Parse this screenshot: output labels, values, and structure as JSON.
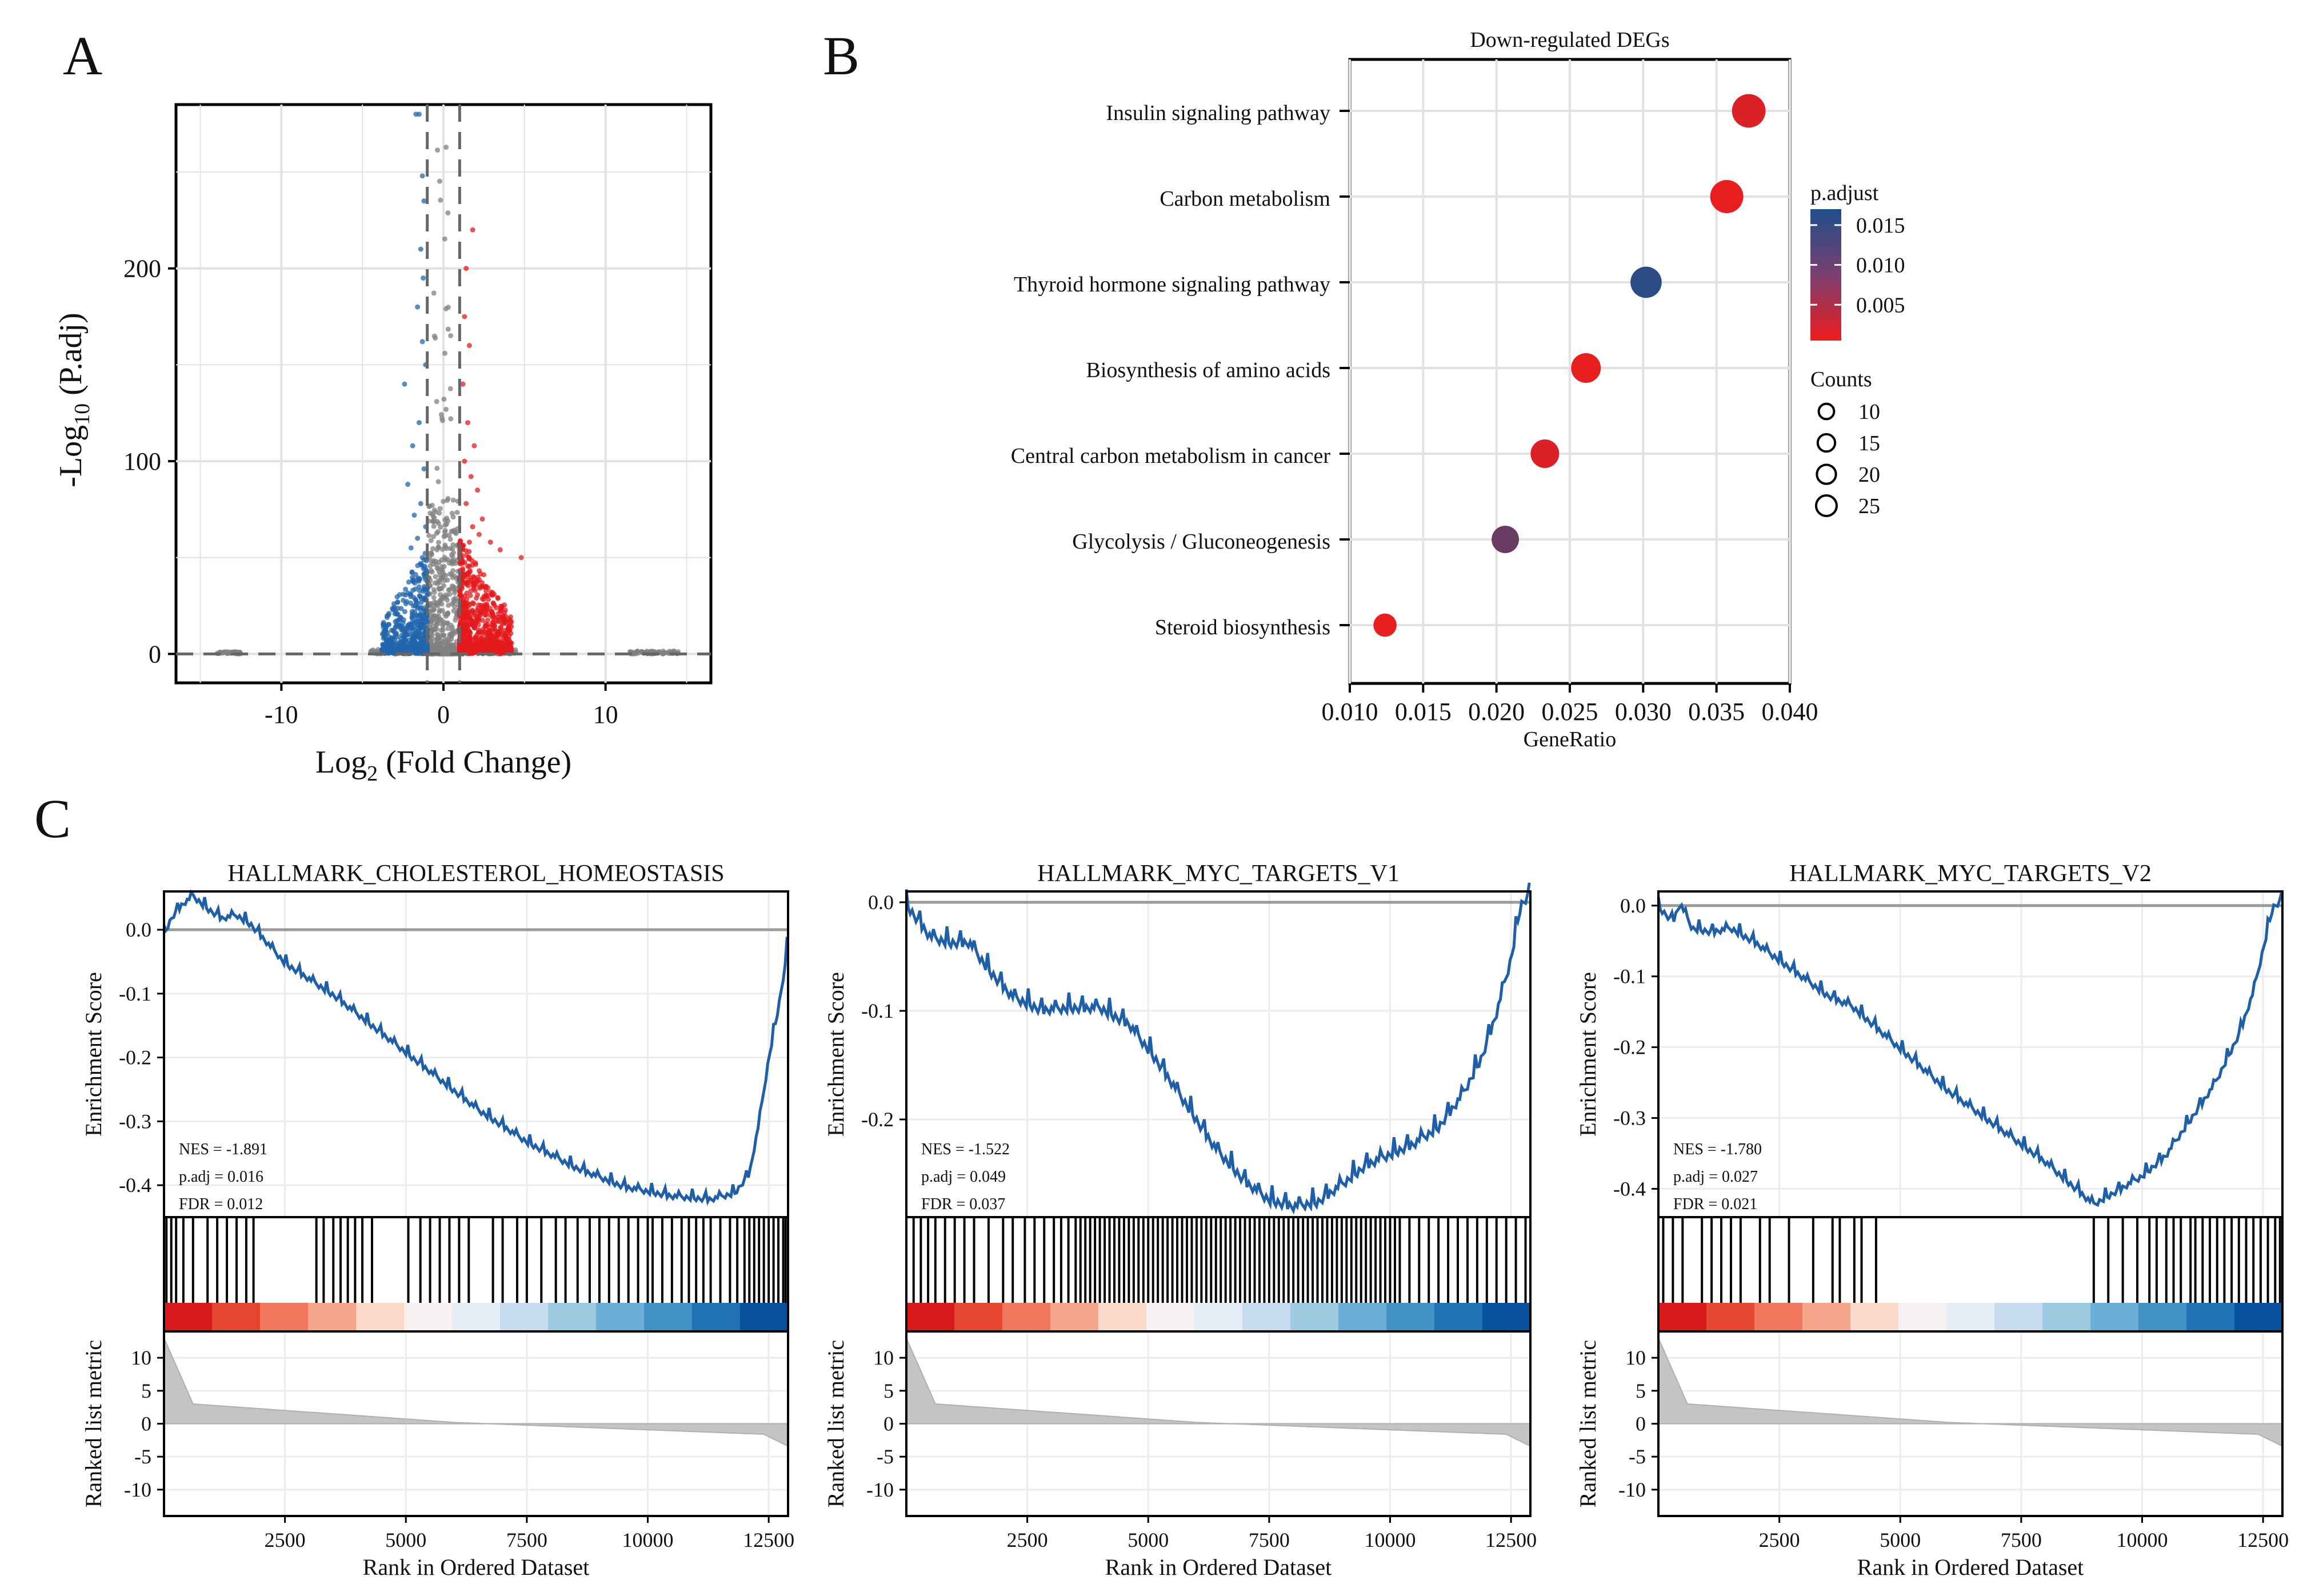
{
  "panels": {
    "a": "A",
    "b": "B",
    "c": "C"
  },
  "chart_data": [
    {
      "type": "scatter",
      "name": "volcano",
      "xlabel_main": "Log",
      "xlabel_sub": "2",
      "xlabel_rest": " (Fold Change)",
      "ylabel_main": "-Log",
      "ylabel_sub": "10",
      "ylabel_rest": " (P.adj)",
      "xlim": [
        -16.5,
        16.5
      ],
      "ylim": [
        -15,
        285
      ],
      "xticks": [
        "-10",
        "0",
        "10"
      ],
      "xtick_values": [
        -10,
        0,
        10
      ],
      "yticks": [
        "0",
        "100",
        "200"
      ],
      "ytick_values": [
        0,
        100,
        200
      ],
      "thresholds": {
        "log2fc": [
          -1,
          1
        ],
        "padj": 0
      },
      "colors": {
        "down": "#2166ac",
        "up": "#e41a1c",
        "ns": "#808080"
      }
    },
    {
      "type": "scatter",
      "name": "dotplot",
      "title": "Down-regulated DEGs",
      "xlabel": "GeneRatio",
      "xlim": [
        0.01,
        0.04
      ],
      "xticks": [
        "0.010",
        "0.015",
        "0.020",
        "0.025",
        "0.030",
        "0.035",
        "0.040"
      ],
      "xtick_values": [
        0.01,
        0.015,
        0.02,
        0.025,
        0.03,
        0.035,
        0.04
      ],
      "pathways": [
        {
          "term": "Insulin signaling pathway",
          "gene_ratio": 0.0372,
          "p_adjust": 0.002,
          "count": 26
        },
        {
          "term": "Carbon metabolism",
          "gene_ratio": 0.0357,
          "p_adjust": 0.001,
          "count": 25
        },
        {
          "term": "Thyroid hormone signaling pathway",
          "gene_ratio": 0.0302,
          "p_adjust": 0.016,
          "count": 21
        },
        {
          "term": "Biosynthesis of amino acids",
          "gene_ratio": 0.0261,
          "p_adjust": 0.001,
          "count": 18
        },
        {
          "term": "Central carbon metabolism in cancer",
          "gene_ratio": 0.0233,
          "p_adjust": 0.002,
          "count": 16
        },
        {
          "term": "Glycolysis / Gluconeogenesis",
          "gene_ratio": 0.0206,
          "p_adjust": 0.011,
          "count": 14
        },
        {
          "term": "Steroid biosynthesis",
          "gene_ratio": 0.0124,
          "p_adjust": 0.001,
          "count": 8
        }
      ],
      "legend": {
        "color_title": "p.adjust",
        "color_ticks": [
          "0.015",
          "0.010",
          "0.005"
        ],
        "color_tick_values": [
          0.015,
          0.01,
          0.005
        ],
        "color_range": [
          0.0005,
          0.017
        ],
        "color_low": "#ee1c1c",
        "color_high": "#1f4e8c",
        "size_title": "Counts",
        "size_labels": [
          "10",
          "15",
          "20",
          "25"
        ],
        "size_values": [
          10,
          15,
          20,
          25
        ]
      }
    },
    {
      "type": "line",
      "name": "gsea-cholesterol",
      "title": "HALLMARK_CHOLESTEROL_HOMEOSTASIS",
      "ylabel": "Enrichment Score",
      "ylabel2": "Ranked list metric",
      "xlabel": "Rank in Ordered Dataset",
      "nes": "NES = -1.891",
      "padj": "p.adj = 0.016",
      "fdr": "FDR = 0.012",
      "ylim": [
        -0.45,
        0.06
      ],
      "yticks": [
        "0.0",
        "-0.1",
        "-0.2",
        "-0.3",
        "-0.4"
      ],
      "ytick_values": [
        0,
        -0.1,
        -0.2,
        -0.3,
        -0.4
      ],
      "xlim": [
        0,
        12900
      ],
      "xticks": [
        "2500",
        "5000",
        "7500",
        "10000",
        "12500"
      ],
      "xtick_values": [
        2500,
        5000,
        7500,
        10000,
        12500
      ],
      "metric_ticks": [
        "10",
        "5",
        "0",
        "-5",
        "-10"
      ],
      "metric_tick_values": [
        10,
        5,
        0,
        -5,
        -10
      ],
      "metric_lim": [
        -14,
        14
      ],
      "curve_rank": [
        0,
        150,
        350,
        600,
        900,
        1200,
        1500,
        1800,
        2500,
        3500,
        4500,
        5500,
        6500,
        7500,
        8500,
        9500,
        10500,
        11300,
        11800,
        12100,
        12300,
        12500,
        12700,
        12850,
        12900
      ],
      "curve_es": [
        -0.005,
        0.02,
        0.04,
        0.055,
        0.035,
        0.02,
        0.025,
        0.01,
        -0.05,
        -0.1,
        -0.16,
        -0.22,
        -0.28,
        -0.33,
        -0.37,
        -0.4,
        -0.415,
        -0.42,
        -0.41,
        -0.38,
        -0.3,
        -0.2,
        -0.12,
        -0.05,
        0.0
      ],
      "hits": [
        50,
        150,
        250,
        400,
        600,
        900,
        1100,
        1300,
        1500,
        1700,
        1850,
        3150,
        3300,
        3500,
        3650,
        3800,
        3950,
        4100,
        4300,
        5050,
        5300,
        5500,
        5700,
        5900,
        6100,
        6300,
        6800,
        7000,
        7300,
        7500,
        7800,
        8100,
        8300,
        8550,
        8800,
        9000,
        9200,
        9400,
        9600,
        9800,
        10000,
        10100,
        10300,
        10500,
        10700,
        10850,
        11000,
        11150,
        11300,
        11500,
        11700,
        11850,
        12000,
        12100,
        12200,
        12300,
        12400,
        12500,
        12600,
        12700,
        12800,
        12850
      ]
    },
    {
      "type": "line",
      "name": "gsea-myc-v1",
      "title": "HALLMARK_MYC_TARGETS_V1",
      "ylabel": "Enrichment Score",
      "ylabel2": "Ranked list metric",
      "xlabel": "Rank in Ordered Dataset",
      "nes": "NES = -1.522",
      "padj": "p.adj = 0.049",
      "fdr": "FDR = 0.037",
      "ylim": [
        -0.29,
        0.01
      ],
      "yticks": [
        "0.0",
        "-0.1",
        "-0.2"
      ],
      "ytick_values": [
        0,
        -0.1,
        -0.2
      ],
      "xlim": [
        0,
        12900
      ],
      "xticks": [
        "2500",
        "5000",
        "7500",
        "10000",
        "12500"
      ],
      "xtick_values": [
        2500,
        5000,
        7500,
        10000,
        12500
      ],
      "metric_ticks": [
        "10",
        "5",
        "0",
        "-5",
        "-10"
      ],
      "metric_tick_values": [
        10,
        5,
        0,
        -5,
        -10
      ],
      "metric_lim": [
        -14,
        14
      ],
      "curve_rank": [
        0,
        500,
        900,
        1300,
        1700,
        2200,
        2800,
        3400,
        4000,
        4600,
        5200,
        5800,
        6400,
        7000,
        7500,
        8000,
        8500,
        9000,
        9500,
        10000,
        10500,
        11000,
        11500,
        11900,
        12200,
        12500,
        12700,
        12900
      ],
      "curve_es": [
        0.0,
        -0.03,
        -0.035,
        -0.035,
        -0.06,
        -0.085,
        -0.097,
        -0.095,
        -0.095,
        -0.11,
        -0.145,
        -0.185,
        -0.225,
        -0.255,
        -0.272,
        -0.278,
        -0.274,
        -0.258,
        -0.24,
        -0.23,
        -0.22,
        -0.205,
        -0.175,
        -0.14,
        -0.1,
        -0.05,
        0.0,
        0.01
      ],
      "hits": [
        150,
        300,
        450,
        600,
        800,
        1000,
        1200,
        1400,
        1700,
        2000,
        2200,
        2450,
        2650,
        2850,
        3050,
        3200,
        3350,
        3500,
        3600,
        3700,
        3800,
        3900,
        4000,
        4100,
        4200,
        4300,
        4400,
        4500,
        4600,
        4700,
        4800,
        4900,
        5000,
        5100,
        5200,
        5300,
        5400,
        5500,
        5600,
        5700,
        5800,
        5900,
        6000,
        6100,
        6200,
        6300,
        6400,
        6500,
        6600,
        6700,
        6800,
        6900,
        7000,
        7100,
        7200,
        7300,
        7400,
        7500,
        7600,
        7700,
        7800,
        7900,
        8000,
        8100,
        8200,
        8300,
        8400,
        8500,
        8600,
        8700,
        8800,
        8900,
        9000,
        9100,
        9200,
        9300,
        9400,
        9500,
        9600,
        9700,
        9800,
        9900,
        10000,
        10100,
        10200,
        10400,
        10600,
        10800,
        11000,
        11200,
        11400,
        11600,
        11800,
        12000,
        12200,
        12400,
        12600,
        12800
      ]
    },
    {
      "type": "line",
      "name": "gsea-myc-v2",
      "title": "HALLMARK_MYC_TARGETS_V2",
      "ylabel": "Enrichment Score",
      "ylabel2": "Ranked list metric",
      "xlabel": "Rank in Ordered Dataset",
      "nes": "NES = -1.780",
      "padj": "p.adj = 0.027",
      "fdr": "FDR = 0.021",
      "ylim": [
        -0.44,
        0.02
      ],
      "yticks": [
        "0.0",
        "-0.1",
        "-0.2",
        "-0.3",
        "-0.4"
      ],
      "ytick_values": [
        0,
        -0.1,
        -0.2,
        -0.3,
        -0.4
      ],
      "xlim": [
        0,
        12900
      ],
      "xticks": [
        "2500",
        "5000",
        "7500",
        "10000",
        "12500"
      ],
      "xtick_values": [
        2500,
        5000,
        7500,
        10000,
        12500
      ],
      "metric_ticks": [
        "10",
        "5",
        "0",
        "-5",
        "-10"
      ],
      "metric_tick_values": [
        10,
        5,
        0,
        -5,
        -10
      ],
      "metric_lim": [
        -14,
        14
      ],
      "curve_rank": [
        0,
        300,
        450,
        700,
        1100,
        1500,
        2000,
        2500,
        3000,
        3500,
        4000,
        5000,
        6000,
        7000,
        8000,
        8500,
        9000,
        9500,
        10000,
        10500,
        11000,
        11500,
        12000,
        12300,
        12500,
        12700,
        12900
      ],
      "curve_es": [
        0.0,
        -0.02,
        0.005,
        -0.03,
        -0.035,
        -0.03,
        -0.05,
        -0.075,
        -0.1,
        -0.125,
        -0.14,
        -0.2,
        -0.26,
        -0.31,
        -0.36,
        -0.39,
        -0.42,
        -0.4,
        -0.38,
        -0.35,
        -0.3,
        -0.25,
        -0.18,
        -0.12,
        -0.06,
        0.0,
        0.01
      ],
      "hits": [
        100,
        300,
        500,
        900,
        1100,
        1300,
        1500,
        1700,
        2100,
        2300,
        2700,
        3200,
        3600,
        3750,
        4050,
        4200,
        4500,
        9000,
        9300,
        9600,
        9900,
        10150,
        10300,
        10500,
        10650,
        10800,
        11000,
        11100,
        11250,
        11400,
        11550,
        11700,
        11850,
        12000,
        12150,
        12300,
        12450,
        12600,
        12750,
        12850
      ]
    }
  ]
}
